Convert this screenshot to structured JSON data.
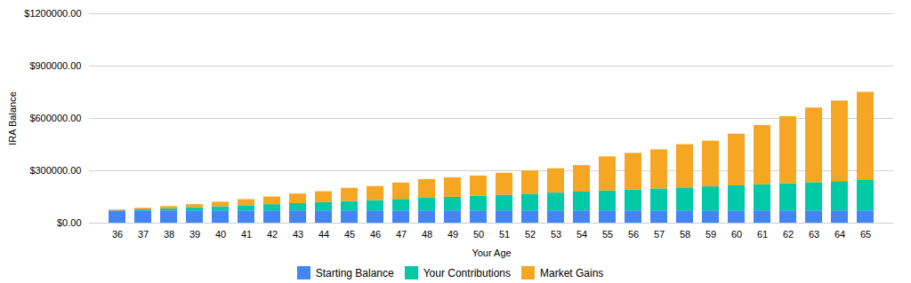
{
  "chart_data": {
    "type": "bar",
    "stacked": true,
    "categories": [
      "36",
      "37",
      "38",
      "39",
      "40",
      "41",
      "42",
      "43",
      "44",
      "45",
      "46",
      "47",
      "48",
      "49",
      "50",
      "51",
      "52",
      "53",
      "54",
      "55",
      "56",
      "57",
      "58",
      "59",
      "60",
      "61",
      "62",
      "63",
      "64",
      "65"
    ],
    "series": [
      {
        "name": "Starting Balance",
        "color": "#4285f4",
        "values": [
          70000,
          70000,
          70000,
          70000,
          70000,
          70000,
          70000,
          70000,
          70000,
          70000,
          70000,
          70000,
          70000,
          70000,
          70000,
          70000,
          70000,
          70000,
          70000,
          70000,
          70000,
          70000,
          70000,
          70000,
          70000,
          70000,
          70000,
          70000,
          70000,
          70000
        ]
      },
      {
        "name": "Your Contributions",
        "color": "#00c9a7",
        "values": [
          0,
          6000,
          12000,
          18000,
          24000,
          30000,
          36000,
          42000,
          48000,
          54000,
          60000,
          66000,
          72000,
          78000,
          84000,
          90000,
          96000,
          102000,
          108000,
          114000,
          120000,
          126000,
          132000,
          138000,
          144000,
          150000,
          156000,
          162000,
          168000,
          174000
        ]
      },
      {
        "name": "Market Gains",
        "color": "#f5a623",
        "values": [
          5000,
          9000,
          13000,
          18000,
          26000,
          35000,
          44000,
          55000,
          62000,
          76000,
          80000,
          94000,
          108000,
          112000,
          116000,
          126000,
          134000,
          140000,
          152000,
          196000,
          210000,
          224000,
          248000,
          262000,
          296000,
          340000,
          384000,
          428000,
          462000,
          506000
        ]
      }
    ],
    "xlabel": "Your Age",
    "ylabel": "IRA Balance",
    "ylim": [
      0,
      1200000
    ],
    "yticks": [
      {
        "value": 0,
        "label": "$0.00"
      },
      {
        "value": 300000,
        "label": "$300000.00"
      },
      {
        "value": 600000,
        "label": "$600000.00"
      },
      {
        "value": 900000,
        "label": "$900000.00"
      },
      {
        "value": 1200000,
        "label": "$1200000.00"
      }
    ],
    "grid": true,
    "legend": "bottom"
  }
}
